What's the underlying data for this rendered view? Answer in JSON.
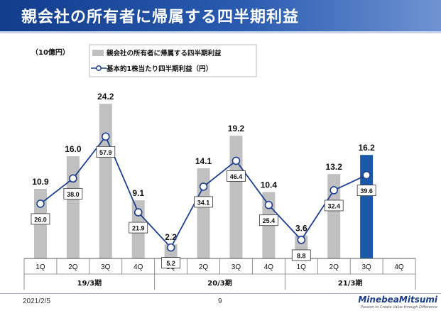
{
  "header": {
    "title": "親会社の所有者に帰属する四半期利益"
  },
  "footer": {
    "date": "2021/2/5",
    "page": "9",
    "logo_name": "MinebeaMitsumi",
    "logo_tagline": "Passion to Create Value through Difference"
  },
  "chart_data": {
    "type": "bar",
    "unit_label": "（10億円）",
    "categories": [
      "1Q",
      "2Q",
      "3Q",
      "4Q",
      "1Q",
      "2Q",
      "3Q",
      "4Q",
      "1Q",
      "2Q",
      "3Q",
      "4Q"
    ],
    "groups": [
      {
        "label": "19/3期",
        "span": [
          0,
          3
        ]
      },
      {
        "label": "20/3期",
        "span": [
          4,
          7
        ]
      },
      {
        "label": "21/3期",
        "span": [
          8,
          11
        ]
      }
    ],
    "series": [
      {
        "name": "親会社の所有者に帰属する四半期利益",
        "type": "bar",
        "values": [
          10.9,
          16.0,
          24.2,
          9.1,
          2.2,
          14.1,
          19.2,
          10.4,
          3.6,
          13.2,
          16.2,
          null
        ],
        "color": "#c0c0c0",
        "highlight_index": 10,
        "highlight_color": "#1c58a8"
      },
      {
        "name": "基本的1株当たり四半期利益（円）",
        "type": "line",
        "values": [
          26.0,
          38.0,
          57.9,
          21.9,
          5.2,
          34.1,
          46.4,
          25.4,
          8.8,
          32.4,
          39.6,
          null
        ],
        "color": "#1f3f92"
      }
    ],
    "bar_labels": [
      "10.9",
      "16.0",
      "24.2",
      "9.1",
      "2.2",
      "14.1",
      "19.2",
      "10.4",
      "3.6",
      "13.2",
      "16.2",
      ""
    ],
    "line_labels": [
      "26.0",
      "38.0",
      "57.9",
      "21.9",
      "5.2",
      "34.1",
      "46.4",
      "25.4",
      "8.8",
      "32.4",
      "39.6",
      ""
    ],
    "bar_ylim": [
      0,
      28
    ],
    "line_ylim": [
      0,
      85
    ],
    "legend_position": "top-center"
  }
}
